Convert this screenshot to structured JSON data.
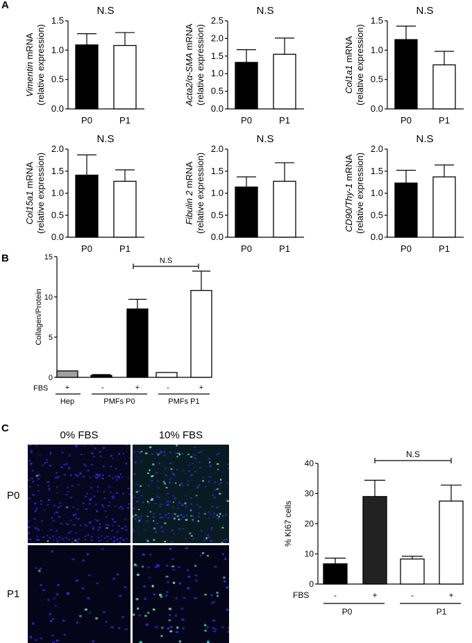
{
  "panels": {
    "a_label": "A",
    "b_label": "B",
    "c_label": "C"
  },
  "colors": {
    "black_bar": "#000000",
    "white_bar": "#ffffff",
    "grey_bar": "#a0a0a0",
    "dark_bar": "#222222",
    "nuclei_blue": "#2a2ad8",
    "ki67_green": "#5dd7b0",
    "micro_background": "#06061e"
  },
  "chart_data": [
    {
      "id": "vimentin",
      "type": "bar",
      "ylabel_italic": "Vimentin",
      "ylabel_rest": " mRNA",
      "ylabel_line2": "(relative expression)",
      "annotation": "N.S",
      "categories": [
        "P0",
        "P1"
      ],
      "values": [
        1.09,
        1.08
      ],
      "errors": [
        0.19,
        0.22
      ],
      "ylim": [
        0,
        1.5
      ],
      "yticks": [
        0.0,
        0.5,
        1.0,
        1.5
      ],
      "tick_labels": [
        "0.0",
        "0.5",
        "1.0",
        "1.5"
      ],
      "fills": [
        "black",
        "white"
      ]
    },
    {
      "id": "acta2",
      "type": "bar",
      "ylabel_italic": "Acta2/α-SMA",
      "ylabel_rest": " mRNA",
      "ylabel_line2": "(relative expression)",
      "annotation": "N.S",
      "categories": [
        "P0",
        "P1"
      ],
      "values": [
        1.32,
        1.55
      ],
      "errors": [
        0.36,
        0.46
      ],
      "ylim": [
        0,
        2.5
      ],
      "yticks": [
        0.0,
        0.5,
        1.0,
        1.5,
        2.0,
        2.5
      ],
      "tick_labels": [
        "0.0",
        "0.5",
        "1.0",
        "1.5",
        "2.0",
        "2.5"
      ],
      "fills": [
        "black",
        "white"
      ]
    },
    {
      "id": "col1a1",
      "type": "bar",
      "ylabel_italic": "Col1a1",
      "ylabel_rest": " mRNA",
      "ylabel_line2": "(relative expression)",
      "annotation": "N.S",
      "categories": [
        "P0",
        "P1"
      ],
      "values": [
        1.18,
        0.75
      ],
      "errors": [
        0.23,
        0.23
      ],
      "ylim": [
        0,
        1.5
      ],
      "yticks": [
        0.0,
        0.5,
        1.0,
        1.5
      ],
      "tick_labels": [
        "0.0",
        "0.5",
        "1.0",
        "1.5"
      ],
      "fills": [
        "black",
        "white"
      ]
    },
    {
      "id": "col15a1",
      "type": "bar",
      "ylabel_italic": "Col15a1",
      "ylabel_rest": " mRNA",
      "ylabel_line2": "(relative expression)",
      "annotation": "N.S",
      "categories": [
        "P0",
        "P1"
      ],
      "values": [
        1.41,
        1.27
      ],
      "errors": [
        0.46,
        0.26
      ],
      "ylim": [
        0,
        2.0
      ],
      "yticks": [
        0.0,
        0.5,
        1.0,
        1.5,
        2.0
      ],
      "tick_labels": [
        "0.0",
        "0.5",
        "1.0",
        "1.5",
        "2.0"
      ],
      "fills": [
        "black",
        "white"
      ]
    },
    {
      "id": "fibulin2",
      "type": "bar",
      "ylabel_italic": "Fibulin 2",
      "ylabel_rest": " mRNA",
      "ylabel_line2": "(relative expression)",
      "annotation": "N.S",
      "categories": [
        "P0",
        "P1"
      ],
      "values": [
        1.14,
        1.27
      ],
      "errors": [
        0.23,
        0.42
      ],
      "ylim": [
        0,
        2.0
      ],
      "yticks": [
        0.0,
        0.5,
        1.0,
        1.5,
        2.0
      ],
      "tick_labels": [
        "0.0",
        "0.5",
        "1.0",
        "1.5",
        "2.0"
      ],
      "fills": [
        "black",
        "white"
      ]
    },
    {
      "id": "cd90",
      "type": "bar",
      "ylabel_italic": "CD90/Thy-1",
      "ylabel_rest": " mRNA",
      "ylabel_line2": "(relative expression)",
      "annotation": "N.S",
      "categories": [
        "P0",
        "P1"
      ],
      "values": [
        1.23,
        1.37
      ],
      "errors": [
        0.29,
        0.27
      ],
      "ylim": [
        0,
        2.0
      ],
      "yticks": [
        0.0,
        0.5,
        1.0,
        1.5,
        2.0
      ],
      "tick_labels": [
        "0.0",
        "0.5",
        "1.0",
        "1.5",
        "2.0"
      ],
      "fills": [
        "black",
        "white"
      ]
    },
    {
      "id": "collagen",
      "type": "bar",
      "ylabel": "Collagen/Protein",
      "annotation": "N.S",
      "row_label": "FBS",
      "fbs_signs": [
        "+",
        "-",
        "+",
        "-",
        "+"
      ],
      "groups": [
        "Hep",
        "PMFs P0",
        "PMFs P1"
      ],
      "values": [
        0.8,
        0.25,
        8.5,
        0.6,
        10.8
      ],
      "errors": [
        0,
        0.1,
        1.2,
        0,
        2.4
      ],
      "fills": [
        "grey",
        "black",
        "black",
        "white",
        "white"
      ],
      "ylim": [
        0,
        15
      ],
      "yticks": [
        0,
        5,
        10,
        15
      ],
      "tick_labels": [
        "0",
        "5",
        "10",
        "15"
      ]
    },
    {
      "id": "ki67",
      "type": "bar",
      "ylabel": "% KI67 cells",
      "annotation": "N.S",
      "row_label": "FBS",
      "fbs_signs": [
        "-",
        "+",
        "-",
        "+"
      ],
      "groups": [
        "P0",
        "P1"
      ],
      "values": [
        6.7,
        29.0,
        8.3,
        27.5
      ],
      "errors": [
        1.9,
        5.4,
        0.9,
        5.3
      ],
      "fills": [
        "black",
        "dark",
        "white",
        "white"
      ],
      "ylim": [
        0,
        40
      ],
      "yticks": [
        0,
        10,
        20,
        30,
        40
      ],
      "tick_labels": [
        "0",
        "10",
        "20",
        "30",
        "40"
      ]
    }
  ],
  "microscopy": {
    "col_titles": [
      "0% FBS",
      "10% FBS"
    ],
    "row_labels": [
      "P0",
      "P1"
    ]
  }
}
